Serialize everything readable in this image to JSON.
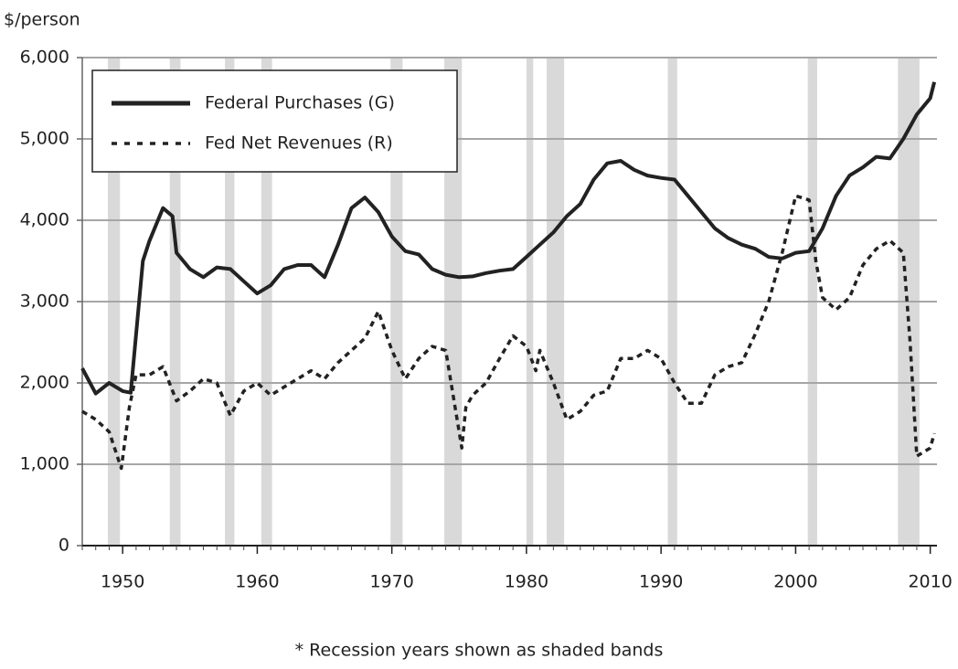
{
  "chart_data": {
    "type": "line",
    "y_unit_label": "$/person",
    "note": "* Recession years shown as shaded bands",
    "xlim": [
      1947,
      2010.5
    ],
    "ylim": [
      0,
      6000
    ],
    "xticks": [
      1950,
      1960,
      1970,
      1980,
      1990,
      2000,
      2010
    ],
    "yticks": [
      0,
      {
        "value": 1000,
        "label": "1,000"
      },
      {
        "value": 2000,
        "label": "2,000"
      },
      {
        "value": 3000,
        "label": "3,000"
      },
      {
        "value": 4000,
        "label": "4,000"
      },
      {
        "value": 5000,
        "label": "5,000"
      },
      {
        "value": 6000,
        "label": "6,000"
      }
    ],
    "grid": true,
    "legend": "upper left",
    "recession_color": "#d9d9d9",
    "recessions": [
      [
        1948.9,
        1949.8
      ],
      [
        1953.5,
        1954.3
      ],
      [
        1957.6,
        1958.3
      ],
      [
        1960.3,
        1961.1
      ],
      [
        1969.9,
        1970.8
      ],
      [
        1973.9,
        1975.2
      ],
      [
        1980.0,
        1980.5
      ],
      [
        1981.5,
        1982.8
      ],
      [
        1990.5,
        1991.2
      ],
      [
        2000.9,
        2001.6
      ],
      [
        2007.6,
        2009.2
      ]
    ],
    "series": [
      {
        "name": "Federal Purchases (G)",
        "color": "#222222",
        "dash": "solid",
        "x": [
          1947,
          1948,
          1949,
          1950,
          1950.6,
          1951,
          1951.5,
          1952,
          1953,
          1953.7,
          1954,
          1955,
          1956,
          1957,
          1958,
          1959,
          1960,
          1961,
          1962,
          1963,
          1964,
          1965,
          1966,
          1967,
          1968,
          1969,
          1970,
          1971,
          1972,
          1973,
          1974,
          1975,
          1976,
          1977,
          1978,
          1979,
          1980,
          1981,
          1982,
          1983,
          1984,
          1985,
          1986,
          1987,
          1988,
          1989,
          1990,
          1991,
          1992,
          1993,
          1994,
          1995,
          1996,
          1997,
          1998,
          1999,
          2000,
          2001,
          2002,
          2003,
          2004,
          2005,
          2006,
          2007,
          2008,
          2009,
          2010,
          2010.3
        ],
        "values": [
          2180,
          1870,
          2000,
          1900,
          1880,
          2600,
          3500,
          3750,
          4150,
          4050,
          3600,
          3400,
          3300,
          3420,
          3400,
          3250,
          3100,
          3200,
          3400,
          3450,
          3450,
          3300,
          3700,
          4150,
          4280,
          4100,
          3800,
          3620,
          3580,
          3400,
          3330,
          3300,
          3310,
          3350,
          3380,
          3400,
          3550,
          3700,
          3850,
          4050,
          4200,
          4500,
          4700,
          4730,
          4620,
          4550,
          4520,
          4500,
          4300,
          4100,
          3900,
          3780,
          3700,
          3650,
          3550,
          3530,
          3600,
          3620,
          3900,
          4300,
          4550,
          4650,
          4780,
          4760,
          5000,
          5300,
          5500,
          5700
        ]
      },
      {
        "name": "Fed Net Revenues (R)",
        "color": "#222222",
        "dash": "dashed",
        "x": [
          1947,
          1948,
          1949,
          1949.9,
          1950.5,
          1951,
          1952,
          1953,
          1954,
          1955,
          1956,
          1957,
          1958,
          1959,
          1960,
          1961,
          1962,
          1963,
          1964,
          1965,
          1966,
          1967,
          1968,
          1969,
          1970,
          1971,
          1972,
          1973,
          1974,
          1975.2,
          1975.5,
          1976,
          1977,
          1978,
          1979,
          1980,
          1980.7,
          1981,
          1982,
          1983,
          1984,
          1985,
          1986,
          1987,
          1988,
          1989,
          1990,
          1991,
          1992,
          1993,
          1994,
          1995,
          1996,
          1997,
          1998,
          1999,
          2000,
          2001,
          2001.5,
          2002,
          2003,
          2004,
          2005,
          2006,
          2007,
          2008,
          2008.5,
          2009,
          2010,
          2010.3
        ],
        "values": [
          1650,
          1550,
          1400,
          950,
          1700,
          2100,
          2100,
          2200,
          1780,
          1900,
          2050,
          2000,
          1600,
          1900,
          2000,
          1850,
          1950,
          2050,
          2150,
          2050,
          2250,
          2400,
          2550,
          2880,
          2400,
          2050,
          2300,
          2450,
          2400,
          1200,
          1700,
          1850,
          2000,
          2300,
          2580,
          2450,
          2150,
          2400,
          2000,
          1550,
          1650,
          1850,
          1900,
          2300,
          2300,
          2400,
          2300,
          2000,
          1750,
          1750,
          2100,
          2200,
          2250,
          2600,
          3000,
          3600,
          4300,
          4250,
          3500,
          3050,
          2900,
          3050,
          3450,
          3650,
          3750,
          3600,
          2500,
          1100,
          1200,
          1380
        ]
      }
    ]
  }
}
